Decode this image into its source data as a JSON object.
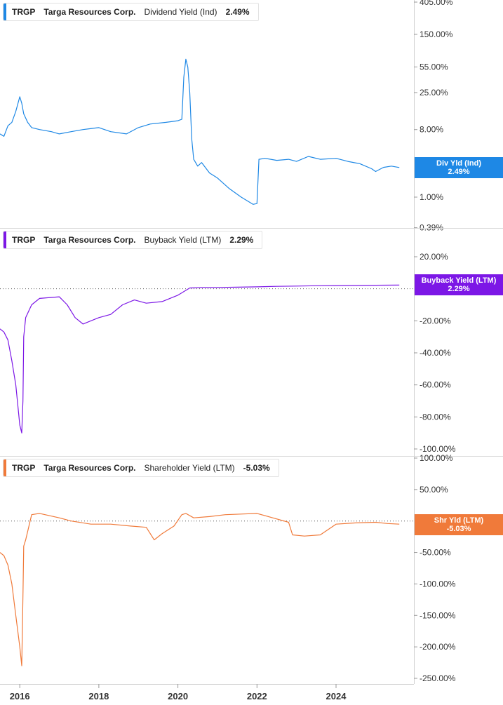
{
  "chart_data": [
    {
      "type": "line",
      "ticker": "TRGP",
      "company": "Targa Resources Corp.",
      "metric": "Dividend Yield (Ind)",
      "latest_value": "2.49%",
      "callout_label": "Div Yld (Ind)",
      "color": "#1e88e5",
      "scale": "log",
      "y_ticks": [
        "405.00%",
        "150.00%",
        "55.00%",
        "25.00%",
        "8.00%",
        "1.00%",
        "0.39%"
      ],
      "y_tick_values": [
        405,
        150,
        55,
        25,
        8,
        1,
        0.39
      ],
      "series": [
        {
          "x": [
            2015.5,
            2015.6,
            2015.7,
            2015.8,
            2015.9,
            2016.0,
            2016.05,
            2016.1,
            2016.2,
            2016.3,
            2016.5,
            2016.8,
            2017.0,
            2017.3,
            2017.6,
            2018.0,
            2018.3,
            2018.7,
            2019.0,
            2019.3,
            2019.7,
            2020.0,
            2020.1,
            2020.15,
            2020.2,
            2020.25,
            2020.3,
            2020.35,
            2020.4,
            2020.5,
            2020.6,
            2020.8,
            2021.0,
            2021.3,
            2021.6,
            2021.9,
            2022.0,
            2022.05,
            2022.2,
            2022.5,
            2022.8,
            2023.0,
            2023.3,
            2023.6,
            2024.0,
            2024.3,
            2024.6,
            2024.9,
            2025.0,
            2025.2,
            2025.4,
            2025.6
          ],
          "y": [
            7,
            6.5,
            9,
            10,
            14,
            22,
            18,
            13,
            10,
            8.5,
            8,
            7.5,
            7,
            7.5,
            8,
            8.5,
            7.5,
            7,
            8.5,
            9.5,
            10,
            10.5,
            11,
            40,
            70,
            55,
            25,
            6,
            3.2,
            2.6,
            2.9,
            2.1,
            1.8,
            1.3,
            1.0,
            0.8,
            0.82,
            3.2,
            3.3,
            3.1,
            3.2,
            3.0,
            3.5,
            3.2,
            3.3,
            3.0,
            2.8,
            2.4,
            2.2,
            2.5,
            2.6,
            2.49
          ]
        }
      ]
    },
    {
      "type": "line",
      "ticker": "TRGP",
      "company": "Targa Resources Corp.",
      "metric": "Buyback Yield (LTM)",
      "latest_value": "2.29%",
      "callout_label": "Buyback Yield (LTM)",
      "color": "#7c17e6",
      "y_ticks": [
        "20.00%",
        "-20.00%",
        "-40.00%",
        "-60.00%",
        "-80.00%",
        "-100.00%"
      ],
      "y_tick_values": [
        20,
        -20,
        -40,
        -60,
        -80,
        -100
      ],
      "ylim": [
        -100,
        25
      ],
      "series": [
        {
          "x": [
            2015.5,
            2015.6,
            2015.7,
            2015.8,
            2015.9,
            2016.0,
            2016.05,
            2016.08,
            2016.1,
            2016.15,
            2016.3,
            2016.5,
            2017.0,
            2017.2,
            2017.4,
            2017.6,
            2018.0,
            2018.3,
            2018.6,
            2018.9,
            2019.2,
            2019.6,
            2020.0,
            2020.3,
            2020.6,
            2021.0,
            2021.5,
            2022.0,
            2022.5,
            2023.0,
            2023.5,
            2024.0,
            2024.5,
            2025.0,
            2025.6
          ],
          "y": [
            -25,
            -27,
            -32,
            -45,
            -60,
            -85,
            -90,
            -70,
            -30,
            -18,
            -10,
            -6,
            -5,
            -10,
            -18,
            -22,
            -18,
            -16,
            -10,
            -7,
            -9,
            -8,
            -4,
            0.5,
            0.8,
            0.8,
            1.0,
            1.2,
            1.5,
            1.7,
            1.9,
            2.0,
            2.1,
            2.2,
            2.29
          ]
        }
      ]
    },
    {
      "type": "line",
      "ticker": "TRGP",
      "company": "Targa Resources Corp.",
      "metric": "Shareholder Yield (LTM)",
      "latest_value": "-5.03%",
      "callout_label": "Shr Yld (LTM)",
      "color": "#f07a3a",
      "y_ticks": [
        "100.00%",
        "50.00%",
        "-50.00%",
        "-100.00%",
        "-150.00%",
        "-200.00%",
        "-250.00%"
      ],
      "y_tick_values": [
        100,
        50,
        -50,
        -100,
        -150,
        -200,
        -250
      ],
      "ylim": [
        -250,
        100
      ],
      "series": [
        {
          "x": [
            2015.5,
            2015.6,
            2015.7,
            2015.8,
            2015.9,
            2016.0,
            2016.05,
            2016.08,
            2016.1,
            2016.15,
            2016.3,
            2016.5,
            2017.0,
            2017.3,
            2017.8,
            2018.3,
            2018.8,
            2019.2,
            2019.4,
            2019.6,
            2019.9,
            2020.1,
            2020.2,
            2020.4,
            2020.8,
            2021.2,
            2021.6,
            2022.0,
            2022.4,
            2022.8,
            2022.9,
            2023.2,
            2023.6,
            2024.0,
            2024.5,
            2025.0,
            2025.3,
            2025.6
          ],
          "y": [
            -50,
            -55,
            -70,
            -100,
            -150,
            -200,
            -230,
            -120,
            -40,
            -30,
            10,
            12,
            5,
            0,
            -5,
            -5,
            -8,
            -10,
            -30,
            -20,
            -8,
            10,
            12,
            5,
            7,
            10,
            11,
            12,
            5,
            -2,
            -22,
            -24,
            -22,
            -5,
            -3,
            -2,
            -4,
            -5.03
          ]
        }
      ]
    }
  ],
  "x_axis": {
    "ticks": [
      "2016",
      "2018",
      "2020",
      "2022",
      "2024"
    ],
    "tick_values": [
      2016,
      2018,
      2020,
      2022,
      2024
    ]
  }
}
